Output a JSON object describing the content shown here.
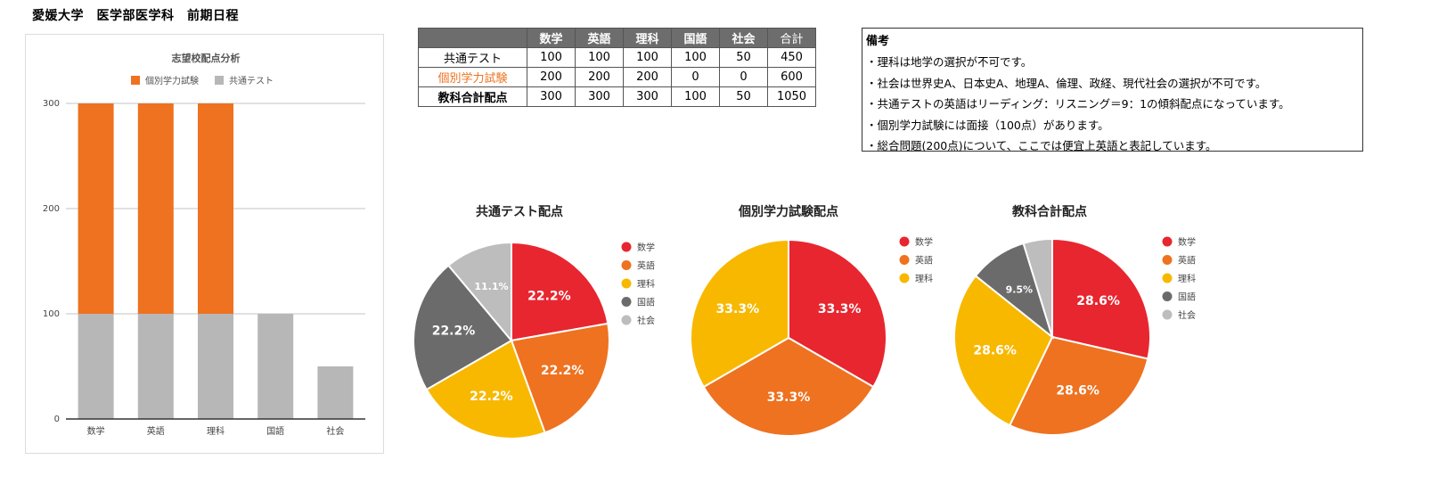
{
  "page": {
    "title": "愛媛大学　医学部医学科　前期日程"
  },
  "colors": {
    "sugaku": "#e8262f",
    "eigo": "#ee7220",
    "rika": "#f8b800",
    "kokugo": "#6b6b6b",
    "shakai": "#bdbdbd",
    "kobetsu": "#ee7220",
    "kyotsu": "#b7b7b7",
    "grid": "#d9d9d9",
    "axis": "#333333",
    "table_header": "#6d6d6d"
  },
  "table": {
    "headers": [
      "",
      "数学",
      "英語",
      "理科",
      "国語",
      "社会",
      "合計"
    ],
    "rows": [
      {
        "label": "共通テスト",
        "style": "normal",
        "values": [
          "100",
          "100",
          "100",
          "100",
          "50",
          "450"
        ]
      },
      {
        "label": "個別学力試験",
        "style": "accent",
        "values": [
          "200",
          "200",
          "200",
          "0",
          "0",
          "600"
        ]
      },
      {
        "label": "教科合計配点",
        "style": "bold",
        "values": [
          "300",
          "300",
          "300",
          "100",
          "50",
          "1050"
        ]
      }
    ]
  },
  "notes": {
    "title": "備考",
    "lines": [
      "・理科は地学の選択が不可です。",
      "・社会は世界史A、日本史A、地理A、倫理、政経、現代社会の選択が不可です。",
      "・共通テストの英語はリーディング：リスニング＝9：1の傾斜配点になっています。",
      "・個別学力試験には面接（100点）があります。",
      "・総合問題(200点)について、ここでは便宜上英語と表記しています。"
    ]
  },
  "chart_data": [
    {
      "type": "bar",
      "stacked": true,
      "title": "志望校配点分析",
      "categories": [
        "数学",
        "英語",
        "理科",
        "国語",
        "社会"
      ],
      "series": [
        {
          "name": "共通テスト",
          "values": [
            100,
            100,
            100,
            100,
            50
          ],
          "color": "#b7b7b7"
        },
        {
          "name": "個別学力試験",
          "values": [
            200,
            200,
            200,
            0,
            0
          ],
          "color": "#ee7220"
        }
      ],
      "legend": [
        {
          "name": "個別学力試験",
          "color": "#ee7220"
        },
        {
          "name": "共通テスト",
          "color": "#b7b7b7"
        }
      ],
      "ylim": [
        0,
        300
      ],
      "yticks": [
        0,
        100,
        200,
        300
      ],
      "grid": true,
      "xlabel": "",
      "ylabel": ""
    },
    {
      "type": "pie",
      "title": "共通テスト配点",
      "slices": [
        {
          "label": "数学",
          "value": 100,
          "pct_label": "22.2%",
          "color": "#e8262f"
        },
        {
          "label": "英語",
          "value": 100,
          "pct_label": "22.2%",
          "color": "#ee7220"
        },
        {
          "label": "理科",
          "value": 100,
          "pct_label": "22.2%",
          "color": "#f8b800"
        },
        {
          "label": "国語",
          "value": 100,
          "pct_label": "22.2%",
          "color": "#6b6b6b"
        },
        {
          "label": "社会",
          "value": 50,
          "pct_label": "11.1%",
          "color": "#bdbdbd"
        }
      ],
      "legend_position": "right"
    },
    {
      "type": "pie",
      "title": "個別学力試験配点",
      "slices": [
        {
          "label": "数学",
          "value": 200,
          "pct_label": "33.3%",
          "color": "#e8262f"
        },
        {
          "label": "英語",
          "value": 200,
          "pct_label": "33.3%",
          "color": "#ee7220"
        },
        {
          "label": "理科",
          "value": 200,
          "pct_label": "33.3%",
          "color": "#f8b800"
        }
      ],
      "legend_position": "right"
    },
    {
      "type": "pie",
      "title": "教科合計配点",
      "slices": [
        {
          "label": "数学",
          "value": 300,
          "pct_label": "28.6%",
          "color": "#e8262f"
        },
        {
          "label": "英語",
          "value": 300,
          "pct_label": "28.6%",
          "color": "#ee7220"
        },
        {
          "label": "理科",
          "value": 300,
          "pct_label": "28.6%",
          "color": "#f8b800"
        },
        {
          "label": "国語",
          "value": 100,
          "pct_label": "9.5%",
          "color": "#6b6b6b"
        },
        {
          "label": "社会",
          "value": 50,
          "pct_label": "",
          "color": "#bdbdbd"
        }
      ],
      "legend_position": "right"
    }
  ]
}
